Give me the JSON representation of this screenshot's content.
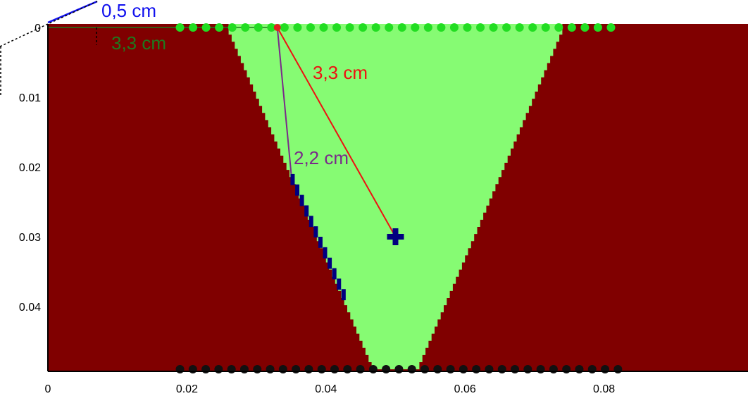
{
  "chart_data": {
    "type": "heatmap",
    "title": "",
    "xlabel": "",
    "ylabel": "",
    "xlim": [
      0,
      0.1
    ],
    "ylim": [
      0.049,
      0
    ],
    "x_ticks": [
      "0",
      "0.02",
      "0.04",
      "0.06",
      "0.08"
    ],
    "x_tick_values": [
      0,
      0.02,
      0.04,
      0.06,
      0.08
    ],
    "y_ticks": [
      "0",
      "0.01",
      "0.02",
      "0.03",
      "0.04"
    ],
    "y_tick_values": [
      0,
      0.01,
      0.02,
      0.03,
      0.04
    ],
    "regions": [
      {
        "name": "background",
        "color": "#800000"
      },
      {
        "name": "v-shaped region",
        "color": "#86fb73",
        "top_edge": {
          "y": 0,
          "x_from": 0.026,
          "x_to": 0.074
        },
        "bottom_edge": {
          "y": 0.049,
          "x_from": 0.047,
          "x_to": 0.053
        }
      }
    ],
    "boundary_segment": {
      "color": "#000080",
      "x": [
        0.035,
        0.043
      ],
      "y": [
        0.021,
        0.039
      ]
    },
    "target_point": {
      "x": 0.05,
      "y": 0.03,
      "color": "#000080"
    },
    "source_point": {
      "x": 0.033,
      "y": 0.0,
      "color": "#e02020"
    },
    "top_receivers": {
      "color": "#22dd22",
      "x_from": 0.019,
      "x_to": 0.081,
      "count": 34,
      "y": 0
    },
    "bottom_receivers": {
      "color": "#111111",
      "x_from": 0.019,
      "x_to": 0.082,
      "count": 35,
      "y": 0.049
    },
    "annotations": [
      {
        "text": "0,5 cm",
        "color": "#1111ee"
      },
      {
        "text": "3,3 cm",
        "color": "#1e7a1e"
      },
      {
        "text": "3,3 cm",
        "color": "#ee1111"
      },
      {
        "text": "2,2 cm",
        "color": "#7a2a8a"
      }
    ],
    "grid": false,
    "legend": "none"
  }
}
